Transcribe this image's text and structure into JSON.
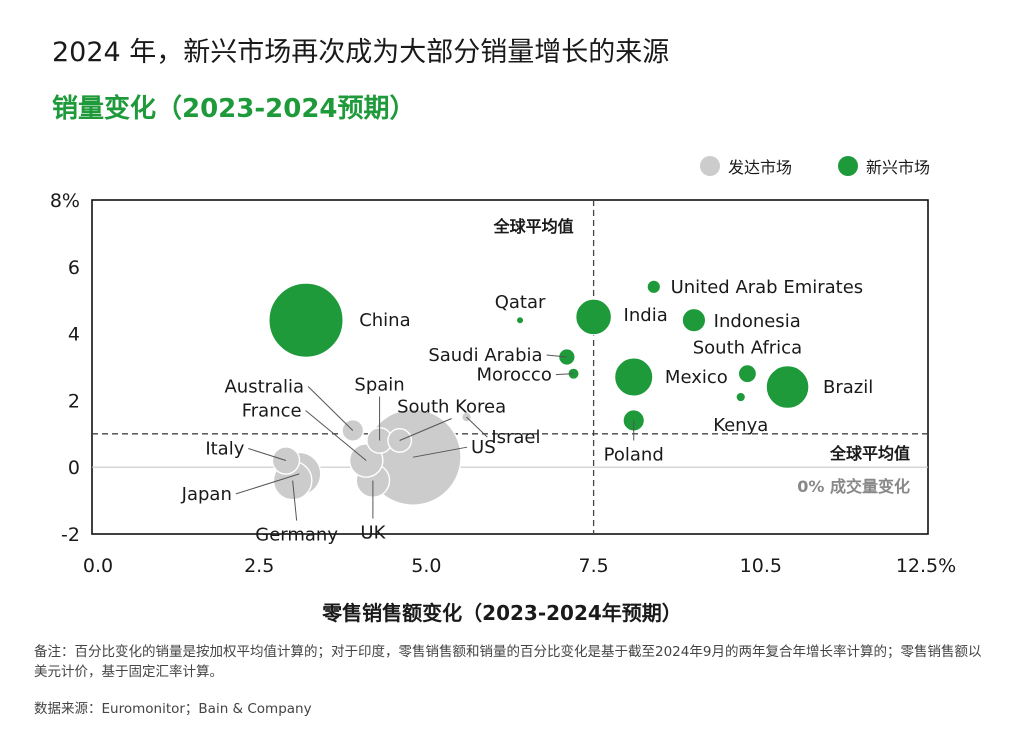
{
  "title": "2024 年，新兴市场再次成为大部分销量增长的来源",
  "subtitle": "销量变化（2023-2024预期）",
  "legend": {
    "developed": {
      "label": "发达市场",
      "color": "#cccccc"
    },
    "emerging": {
      "label": "新兴市场",
      "color": "#1e9a3b"
    }
  },
  "footnote": "备注：百分比变化的销量是按加权平均值计算的；对于印度，零售销售额和销量的百分比变化是基于截至2024年9月的两年复合年增长率计算的；零售销售额以美元计价，基于固定汇率计算。",
  "source": "数据来源：Euromonitor；Bain & Company",
  "chart_data": {
    "type": "scatter",
    "xlabel": "零售销售额变化（2023-2024年预期）",
    "ylabel": "",
    "xlim": [
      0,
      12.5
    ],
    "ylim": [
      -2,
      8
    ],
    "x_ticks": [
      "0.0",
      "2.5",
      "5.0",
      "7.5",
      "10.5",
      "12.5%"
    ],
    "y_ticks": [
      "8%",
      "6",
      "4",
      "2",
      "0",
      "-2"
    ],
    "avg_x": 7.5,
    "avg_y": 1.0,
    "avg_x_label": "全球平均值",
    "avg_y_label": "全球平均值",
    "zero_label": "0% 成交量变化",
    "grid": false,
    "legend_position": "top-right",
    "series": [
      {
        "name": "发达市场",
        "color": "#cccccc",
        "points": [
          {
            "label": "US",
            "x": 4.8,
            "y": 0.3,
            "size": 5.0
          },
          {
            "label": "Japan",
            "x": 3.1,
            "y": -0.2,
            "size": 1.0
          },
          {
            "label": "Germany",
            "x": 3.0,
            "y": -0.4,
            "size": 0.8
          },
          {
            "label": "UK",
            "x": 4.2,
            "y": -0.4,
            "size": 0.6
          },
          {
            "label": "France",
            "x": 4.1,
            "y": 0.2,
            "size": 0.6
          },
          {
            "label": "Italy",
            "x": 2.9,
            "y": 0.2,
            "size": 0.4
          },
          {
            "label": "Spain",
            "x": 4.3,
            "y": 0.8,
            "size": 0.35
          },
          {
            "label": "South Korea",
            "x": 4.6,
            "y": 0.8,
            "size": 0.3
          },
          {
            "label": "Australia",
            "x": 3.9,
            "y": 1.1,
            "size": 0.25
          },
          {
            "label": "Israel",
            "x": 5.6,
            "y": 1.5,
            "size": 0.05
          }
        ]
      },
      {
        "name": "新兴市场",
        "color": "#1e9a3b",
        "points": [
          {
            "label": "China",
            "x": 3.2,
            "y": 4.4,
            "size": 3.0
          },
          {
            "label": "India",
            "x": 7.5,
            "y": 4.5,
            "size": 0.7
          },
          {
            "label": "Brazil",
            "x": 10.4,
            "y": 2.4,
            "size": 1.0
          },
          {
            "label": "Mexico",
            "x": 8.1,
            "y": 2.7,
            "size": 0.8
          },
          {
            "label": "Indonesia",
            "x": 9.0,
            "y": 4.4,
            "size": 0.3
          },
          {
            "label": "South Africa",
            "x": 9.8,
            "y": 2.8,
            "size": 0.18
          },
          {
            "label": "Poland",
            "x": 8.1,
            "y": 1.4,
            "size": 0.25
          },
          {
            "label": "Saudi Arabia",
            "x": 7.1,
            "y": 3.3,
            "size": 0.15
          },
          {
            "label": "United Arab Emirates",
            "x": 8.4,
            "y": 5.4,
            "size": 0.1
          },
          {
            "label": "Morocco",
            "x": 7.2,
            "y": 2.8,
            "size": 0.07
          },
          {
            "label": "Kenya",
            "x": 9.7,
            "y": 2.1,
            "size": 0.05
          },
          {
            "label": "Qatar",
            "x": 6.4,
            "y": 4.4,
            "size": 0.03
          }
        ]
      }
    ]
  }
}
